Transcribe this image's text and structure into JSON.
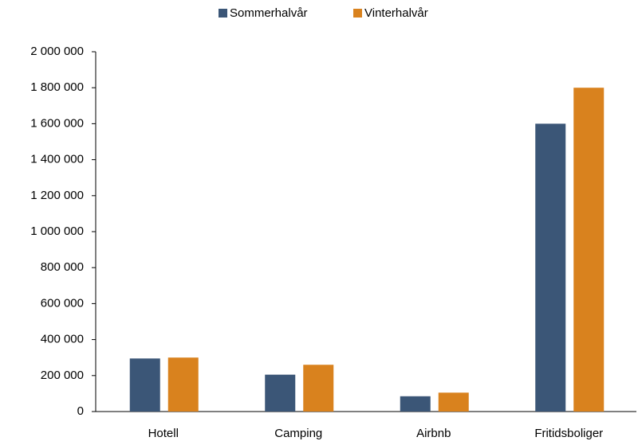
{
  "chart_data": {
    "type": "bar",
    "categories": [
      "Hotell",
      "Camping",
      "Airbnb",
      "Fritidsboliger"
    ],
    "series": [
      {
        "name": "Sommerhalvår",
        "color": "#3b5677",
        "values": [
          295000,
          205000,
          85000,
          1600000
        ]
      },
      {
        "name": "Vinterhalvår",
        "color": "#d9821e",
        "values": [
          300000,
          260000,
          105000,
          1800000
        ]
      }
    ],
    "ylim": [
      0,
      2000000
    ],
    "yticks": [
      0,
      {
        "value": 200000,
        "label": "200 000"
      },
      {
        "value": 400000,
        "label": "400 000"
      },
      {
        "value": 600000,
        "label": "600 000"
      },
      {
        "value": 800000,
        "label": "800 000"
      },
      {
        "value": 1000000,
        "label": "1 000 000"
      },
      {
        "value": 1200000,
        "label": "1 200 000"
      },
      {
        "value": 1400000,
        "label": "1 400 000"
      },
      {
        "value": 1600000,
        "label": "1 600 000"
      },
      {
        "value": 1800000,
        "label": "1 800 000"
      },
      {
        "value": 2000000,
        "label": "2 000 000"
      }
    ],
    "grid": false,
    "legend": "top"
  }
}
